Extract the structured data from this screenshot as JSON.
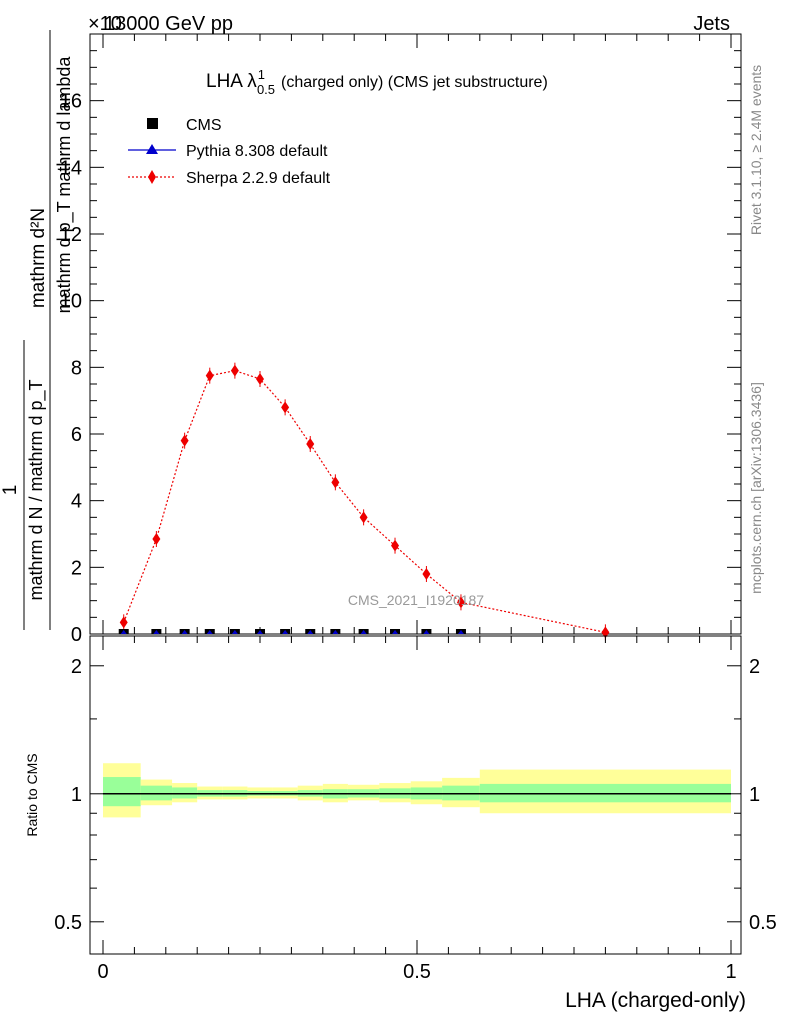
{
  "header": {
    "left": "13000 GeV pp",
    "right": "Jets",
    "exponent": "×10"
  },
  "side_labels": {
    "rivet": "Rivet 3.1.10, ≥ 2.4M events",
    "mcplots": "mcplots.cern.ch [arXiv:1306.3436]"
  },
  "chart_data": [
    {
      "type": "scatter",
      "title": "LHA λ",
      "title_sup": "1",
      "title_sub": "0.5",
      "title_suffix": "(charged only) (CMS jet substructure)",
      "watermark": "CMS_2021_I1920187",
      "ylabel_numerator": "mathrm d²N",
      "ylabel_fraction": "mathrm d p_T mathrm d lambda",
      "ylabel_prefix_num": "1",
      "ylabel_prefix_den": "mathrm d N / mathrm d p_T",
      "xlim": [
        0,
        1
      ],
      "ylim": [
        0,
        18
      ],
      "yticks": [
        0,
        2,
        4,
        6,
        8,
        10,
        12,
        14,
        16
      ],
      "ytick_labels": [
        "0",
        "2",
        "4",
        "6",
        "8",
        "10",
        "12",
        "14",
        "16"
      ],
      "legend_position": "top-left",
      "series": [
        {
          "name": "CMS",
          "color": "#000000",
          "marker": "square",
          "x": [
            0.033,
            0.085,
            0.13,
            0.17,
            0.21,
            0.25,
            0.29,
            0.33,
            0.37,
            0.415,
            0.465,
            0.515,
            0.57
          ],
          "y": [
            0,
            0,
            0,
            0,
            0,
            0,
            0,
            0,
            0,
            0,
            0,
            0,
            0
          ]
        },
        {
          "name": "Pythia 8.308 default",
          "color": "#0000cc",
          "marker": "triangle",
          "x": [
            0.033,
            0.085,
            0.13,
            0.17,
            0.21,
            0.25,
            0.29,
            0.33,
            0.37,
            0.415,
            0.465,
            0.515,
            0.57
          ],
          "y": [
            0,
            0,
            0,
            0,
            0,
            0,
            0,
            0,
            0,
            0,
            0,
            0,
            0
          ]
        },
        {
          "name": "Sherpa 2.2.9 default",
          "color": "#ee0000",
          "marker": "diamond",
          "x": [
            0.033,
            0.085,
            0.13,
            0.17,
            0.21,
            0.25,
            0.29,
            0.33,
            0.37,
            0.415,
            0.465,
            0.515,
            0.57,
            0.8
          ],
          "y": [
            0.35,
            2.85,
            5.8,
            7.75,
            7.9,
            7.65,
            6.8,
            5.7,
            4.55,
            3.5,
            2.65,
            1.8,
            0.95,
            0.05
          ]
        }
      ]
    },
    {
      "type": "area",
      "ylabel": "Ratio to CMS",
      "xlabel": "LHA (charged-only)",
      "xlim": [
        0,
        1
      ],
      "ylim": [
        0.42,
        2.35
      ],
      "log_scale_y": true,
      "yticks": [
        0.5,
        1,
        2
      ],
      "ytick_labels": [
        "0.5",
        "1",
        "2"
      ],
      "xticks": [
        0,
        0.5,
        1
      ],
      "xtick_labels": [
        "0",
        "0.5",
        "1"
      ],
      "bins": [
        0,
        0.06,
        0.11,
        0.15,
        0.19,
        0.23,
        0.27,
        0.31,
        0.35,
        0.39,
        0.44,
        0.49,
        0.54,
        0.6,
        1.0
      ],
      "yellow_band": [
        [
          0.88,
          1.18
        ],
        [
          0.94,
          1.08
        ],
        [
          0.955,
          1.06
        ],
        [
          0.97,
          1.04
        ],
        [
          0.97,
          1.04
        ],
        [
          0.975,
          1.035
        ],
        [
          0.975,
          1.035
        ],
        [
          0.965,
          1.045
        ],
        [
          0.955,
          1.055
        ],
        [
          0.965,
          1.05
        ],
        [
          0.955,
          1.06
        ],
        [
          0.945,
          1.07
        ],
        [
          0.93,
          1.09
        ],
        [
          0.9,
          1.14
        ]
      ],
      "green_band": [
        [
          0.935,
          1.095
        ],
        [
          0.965,
          1.045
        ],
        [
          0.975,
          1.035
        ],
        [
          0.985,
          1.02
        ],
        [
          0.985,
          1.02
        ],
        [
          0.99,
          1.015
        ],
        [
          0.99,
          1.015
        ],
        [
          0.985,
          1.02
        ],
        [
          0.975,
          1.025
        ],
        [
          0.98,
          1.025
        ],
        [
          0.975,
          1.03
        ],
        [
          0.97,
          1.035
        ],
        [
          0.965,
          1.045
        ],
        [
          0.955,
          1.055
        ]
      ],
      "reference_line": 1
    }
  ]
}
